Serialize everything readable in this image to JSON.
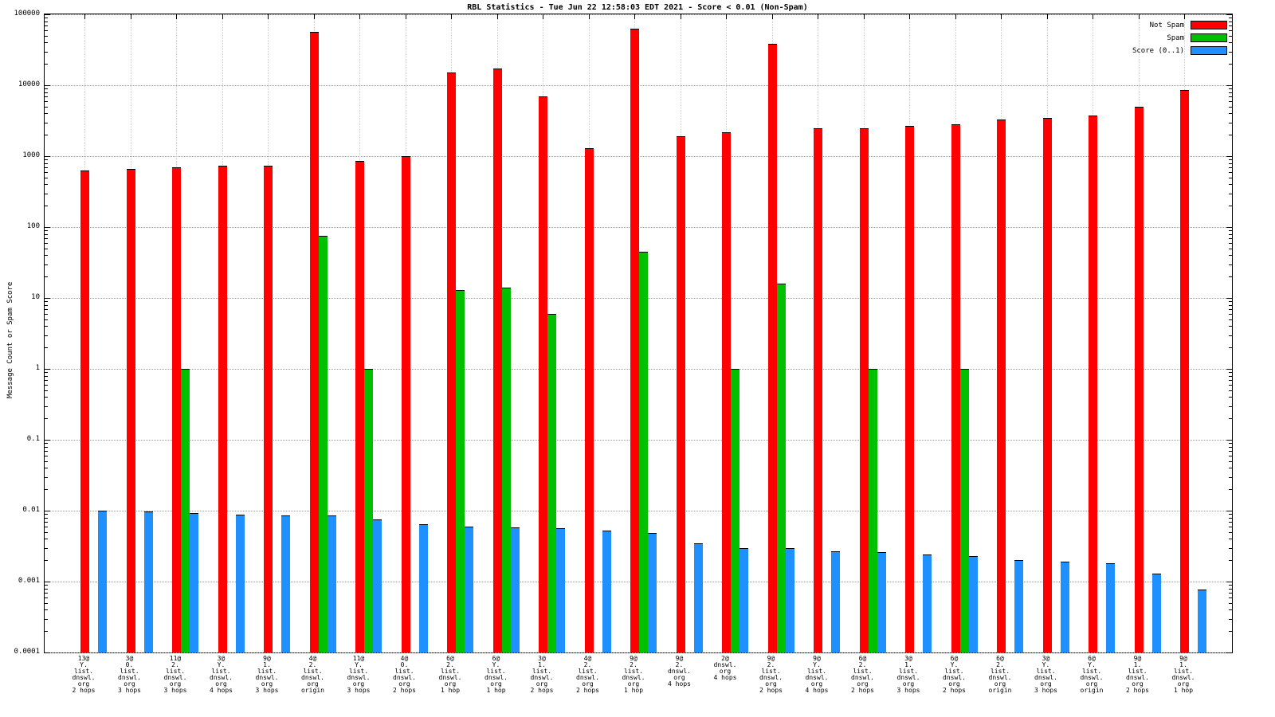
{
  "window": {
    "title": "RBL Statistics - Tue Jun 22 12:58:03 EDT 2021 - Score < 0.01 (Non-Spam)"
  },
  "chart_data": {
    "type": "bar",
    "title": "RBL Statistics - Tue Jun 22 12:58:03 EDT 2021 - Score < 0.01 (Non-Spam)",
    "xlabel": "",
    "ylabel": "Message Count or Spam Score",
    "yscale": "log",
    "ylim": [
      0.0001,
      100000
    ],
    "yticks": [
      100000,
      10000,
      1000,
      100,
      10,
      1,
      0.1,
      0.01,
      0.001,
      0.0001
    ],
    "grid": true,
    "legend_position": "top-right",
    "categories": [
      [
        "13@",
        "Y.",
        "list.",
        "dnswl.",
        "org",
        "2 hops"
      ],
      [
        "3@",
        "0.",
        "list.",
        "dnswl.",
        "org",
        "3 hops"
      ],
      [
        "11@",
        "2.",
        "list.",
        "dnswl.",
        "org",
        "3 hops"
      ],
      [
        "3@",
        "Y.",
        "list.",
        "dnswl.",
        "org",
        "4 hops"
      ],
      [
        "9@",
        "1.",
        "list.",
        "dnswl.",
        "org",
        "3 hops"
      ],
      [
        "4@",
        "2.",
        "list.",
        "dnswl.",
        "org",
        "origin"
      ],
      [
        "11@",
        "Y.",
        "list.",
        "dnswl.",
        "org",
        "3 hops"
      ],
      [
        "4@",
        "0.",
        "list.",
        "dnswl.",
        "org",
        "2 hops"
      ],
      [
        "6@",
        "2.",
        "list.",
        "dnswl.",
        "org",
        "1 hop"
      ],
      [
        "6@",
        "Y.",
        "list.",
        "dnswl.",
        "org",
        "1 hop"
      ],
      [
        "3@",
        "1.",
        "list.",
        "dnswl.",
        "org",
        "2 hops"
      ],
      [
        "4@",
        "2.",
        "list.",
        "dnswl.",
        "org",
        "2 hops"
      ],
      [
        "9@",
        "2.",
        "list.",
        "dnswl.",
        "org",
        "1 hop"
      ],
      [
        "9@",
        "2.",
        "dnswl.",
        "org",
        "4 hops"
      ],
      [
        "2@",
        "dnswl.",
        "org",
        "4 hops"
      ],
      [
        "9@",
        "2.",
        "list.",
        "dnswl.",
        "org",
        "2 hops"
      ],
      [
        "9@",
        "Y.",
        "list.",
        "dnswl.",
        "org",
        "4 hops"
      ],
      [
        "6@",
        "2.",
        "list.",
        "dnswl.",
        "org",
        "2 hops"
      ],
      [
        "3@",
        "1.",
        "list.",
        "dnswl.",
        "org",
        "3 hops"
      ],
      [
        "6@",
        "Y.",
        "list.",
        "dnswl.",
        "org",
        "2 hops"
      ],
      [
        "6@",
        "2.",
        "list.",
        "dnswl.",
        "org",
        "origin"
      ],
      [
        "3@",
        "Y.",
        "list.",
        "dnswl.",
        "org",
        "3 hops"
      ],
      [
        "6@",
        "Y.",
        "list.",
        "dnswl.",
        "org",
        "origin"
      ],
      [
        "9@",
        "1.",
        "list.",
        "dnswl.",
        "org",
        "2 hops"
      ],
      [
        "9@",
        "1.",
        "list.",
        "dnswl.",
        "org",
        "1 hop"
      ]
    ],
    "series": [
      {
        "name": "Not Spam",
        "color": "#ff0000",
        "values": [
          620,
          660,
          700,
          730,
          740,
          57000,
          850,
          1000,
          15000,
          17000,
          7000,
          1300,
          62000,
          1900,
          2200,
          38000,
          2450,
          2500,
          2650,
          2800,
          3300,
          3500,
          3700,
          5000,
          8500
        ]
      },
      {
        "name": "Spam",
        "color": "#00c000",
        "values": [
          0,
          0,
          1,
          0,
          0,
          75,
          1,
          0,
          13,
          14,
          6,
          0,
          45,
          0,
          1,
          16,
          0,
          1,
          0,
          1,
          0,
          0,
          0,
          0,
          0
        ]
      },
      {
        "name": "Score (0..1)",
        "color": "#1e90ff",
        "values": [
          0.01,
          0.0098,
          0.0092,
          0.0088,
          0.0086,
          0.0085,
          0.0076,
          0.0065,
          0.0059,
          0.0058,
          0.0056,
          0.0052,
          0.0048,
          0.0035,
          0.003,
          0.003,
          0.0027,
          0.0026,
          0.0024,
          0.0023,
          0.002,
          0.0019,
          0.0018,
          0.0013,
          0.00078
        ]
      }
    ]
  }
}
